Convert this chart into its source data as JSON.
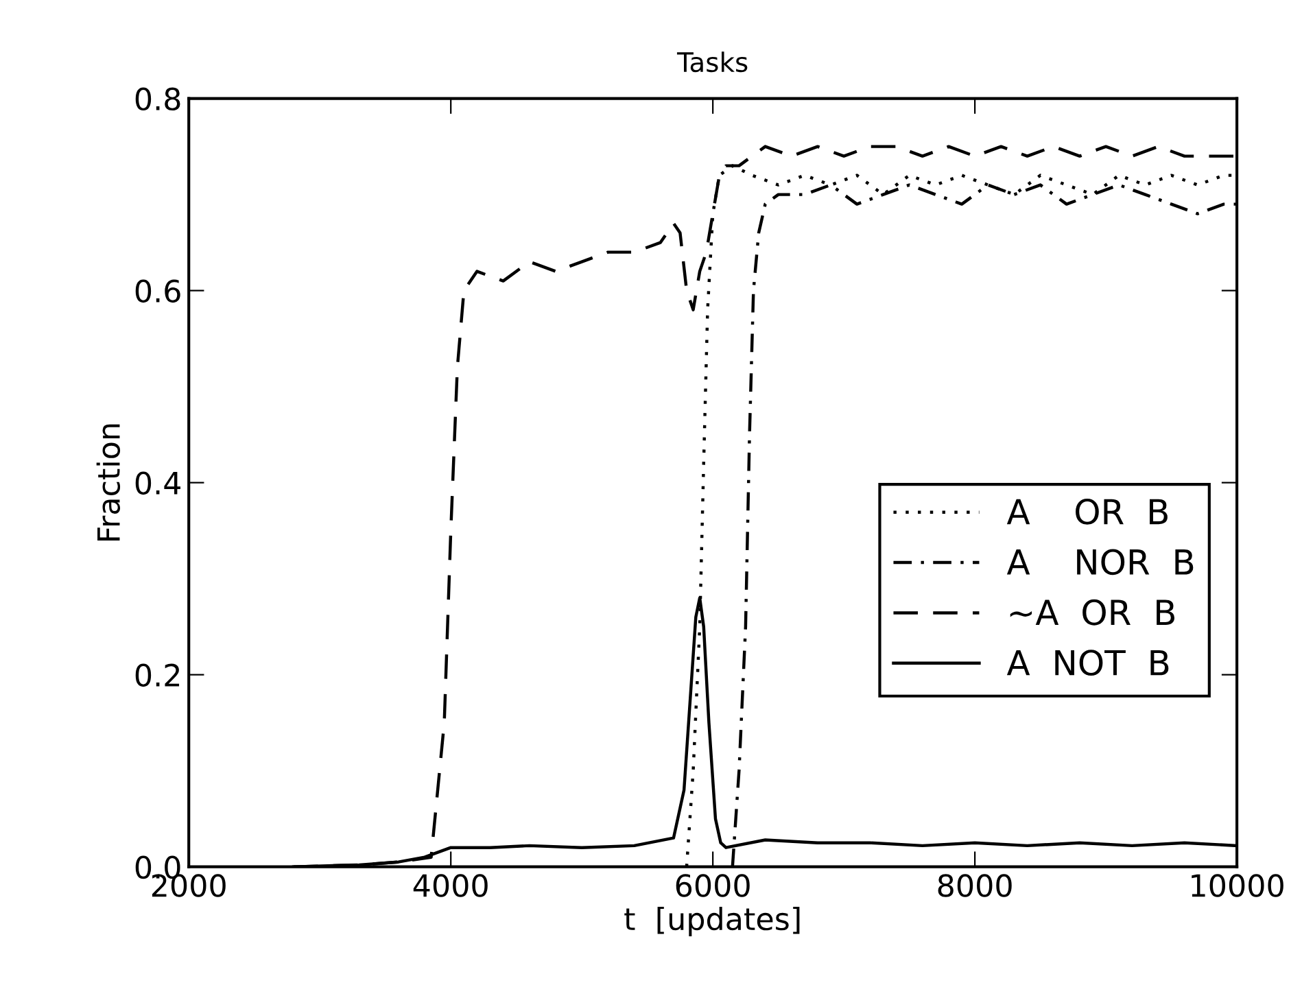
{
  "chart_data": {
    "type": "line",
    "title": "Tasks",
    "xlabel": "t  [updates]",
    "ylabel": "Fraction",
    "xlim": [
      2000,
      10000
    ],
    "ylim": [
      0,
      0.8
    ],
    "xticks": [
      2000,
      4000,
      6000,
      8000,
      10000
    ],
    "yticks": [
      {
        "value": 0,
        "label": "0.0"
      },
      0.2,
      0.4,
      0.6,
      0.8
    ],
    "grid": false,
    "legend": "right",
    "marker": "none",
    "series": [
      {
        "name": "A    OR  B",
        "color": "#000000",
        "line_style": "dotted",
        "x": [
          5800,
          5850,
          5900,
          5930,
          5960,
          6000,
          6050,
          6150,
          6300,
          6500,
          6700,
          6900,
          7100,
          7300,
          7500,
          7700,
          7900,
          8100,
          8300,
          8500,
          8700,
          8900,
          9100,
          9300,
          9500,
          9700,
          9900,
          10000
        ],
        "values": [
          0,
          0.1,
          0.25,
          0.42,
          0.58,
          0.68,
          0.72,
          0.73,
          0.72,
          0.71,
          0.72,
          0.71,
          0.72,
          0.7,
          0.72,
          0.71,
          0.72,
          0.71,
          0.7,
          0.72,
          0.71,
          0.7,
          0.72,
          0.71,
          0.72,
          0.71,
          0.72,
          0.72
        ]
      },
      {
        "name": "A    NOR  B",
        "color": "#000000",
        "line_style": "dashdot",
        "x": [
          6150,
          6200,
          6250,
          6280,
          6310,
          6350,
          6400,
          6500,
          6700,
          6900,
          7100,
          7300,
          7500,
          7700,
          7900,
          8100,
          8300,
          8500,
          8700,
          8900,
          9100,
          9300,
          9500,
          9700,
          9900,
          10000
        ],
        "values": [
          0,
          0.1,
          0.25,
          0.45,
          0.6,
          0.66,
          0.69,
          0.7,
          0.7,
          0.71,
          0.69,
          0.7,
          0.71,
          0.7,
          0.69,
          0.71,
          0.7,
          0.71,
          0.69,
          0.7,
          0.71,
          0.7,
          0.69,
          0.68,
          0.69,
          0.69
        ]
      },
      {
        "name": "~A  OR  B",
        "color": "#000000",
        "line_style": "dashed",
        "x": [
          2800,
          3300,
          3600,
          3850,
          3950,
          4000,
          4050,
          4100,
          4200,
          4400,
          4600,
          4800,
          5000,
          5200,
          5400,
          5600,
          5700,
          5750,
          5800,
          5850,
          5900,
          5950,
          6000,
          6050,
          6100,
          6200,
          6300,
          6400,
          6600,
          6800,
          7000,
          7200,
          7400,
          7600,
          7800,
          8000,
          8200,
          8400,
          8600,
          8800,
          9000,
          9200,
          9400,
          9600,
          9800,
          10000
        ],
        "values": [
          0,
          0.002,
          0.005,
          0.01,
          0.15,
          0.35,
          0.52,
          0.6,
          0.62,
          0.61,
          0.63,
          0.62,
          0.63,
          0.64,
          0.64,
          0.65,
          0.67,
          0.66,
          0.6,
          0.58,
          0.62,
          0.64,
          0.68,
          0.72,
          0.73,
          0.73,
          0.74,
          0.75,
          0.74,
          0.75,
          0.74,
          0.75,
          0.75,
          0.74,
          0.75,
          0.74,
          0.75,
          0.74,
          0.75,
          0.74,
          0.75,
          0.74,
          0.75,
          0.74,
          0.74,
          0.74
        ]
      },
      {
        "name": "A  NOT  B",
        "color": "#000000",
        "line_style": "solid",
        "x": [
          2800,
          3300,
          3600,
          3800,
          4000,
          4300,
          4600,
          5000,
          5400,
          5700,
          5780,
          5830,
          5870,
          5900,
          5930,
          5970,
          6020,
          6060,
          6100,
          6400,
          6800,
          7200,
          7600,
          8000,
          8400,
          8800,
          9200,
          9600,
          10000
        ],
        "values": [
          0,
          0.002,
          0.005,
          0.01,
          0.02,
          0.02,
          0.022,
          0.02,
          0.022,
          0.03,
          0.08,
          0.18,
          0.26,
          0.28,
          0.25,
          0.15,
          0.05,
          0.025,
          0.02,
          0.028,
          0.025,
          0.025,
          0.022,
          0.025,
          0.022,
          0.025,
          0.022,
          0.025,
          0.022
        ]
      }
    ]
  }
}
